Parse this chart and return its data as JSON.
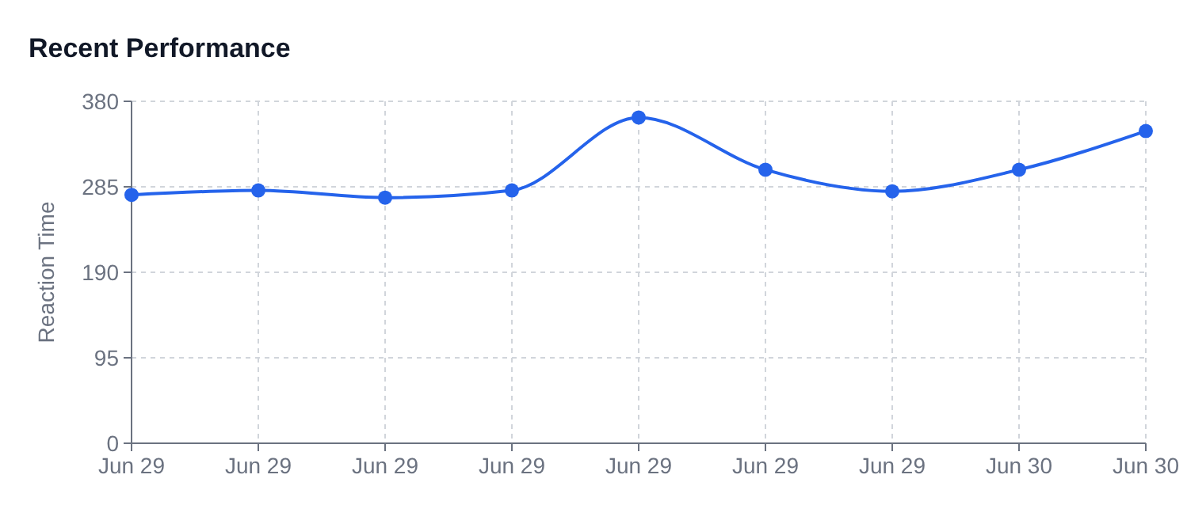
{
  "chart_data": {
    "type": "line",
    "title": "Recent Performance",
    "ylabel": "Reaction Time",
    "categories": [
      "Jun 29",
      "Jun 29",
      "Jun 29",
      "Jun 29",
      "Jun 29",
      "Jun 29",
      "Jun 29",
      "Jun 30",
      "Jun 30"
    ],
    "series": [
      {
        "color": "#2563eb",
        "values": [
          276,
          281,
          273,
          281,
          362,
          304,
          280,
          304,
          347
        ]
      }
    ],
    "ylim": [
      0,
      380
    ],
    "yticks": [
      0,
      95,
      190,
      285,
      380
    ],
    "grid": true,
    "marker": "circle",
    "line_style": "solid"
  }
}
